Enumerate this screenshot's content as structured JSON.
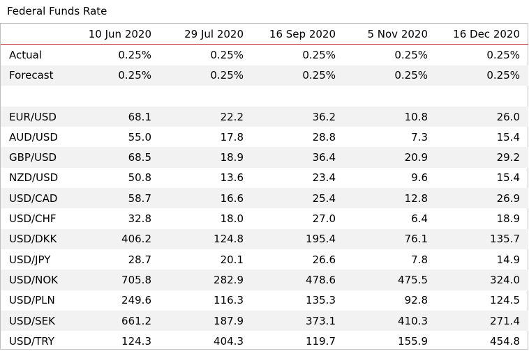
{
  "title": "Federal Funds Rate",
  "columns": [
    "10 Jun 2020",
    "29 Jul 2020",
    "16 Sep 2020",
    "5 Nov 2020",
    "16 Dec 2020"
  ],
  "rate_rows": [
    {
      "label": "Actual",
      "values": [
        "0.25%",
        "0.25%",
        "0.25%",
        "0.25%",
        "0.25%"
      ]
    },
    {
      "label": "Forecast",
      "values": [
        "0.25%",
        "0.25%",
        "0.25%",
        "0.25%",
        "0.25%"
      ]
    }
  ],
  "pair_rows": [
    {
      "label": "EUR/USD",
      "values": [
        "68.1",
        "22.2",
        "36.2",
        "10.8",
        "26.0"
      ]
    },
    {
      "label": "AUD/USD",
      "values": [
        "55.0",
        "17.8",
        "28.8",
        "7.3",
        "15.4"
      ]
    },
    {
      "label": "GBP/USD",
      "values": [
        "68.5",
        "18.9",
        "36.4",
        "20.9",
        "29.2"
      ]
    },
    {
      "label": "NZD/USD",
      "values": [
        "50.8",
        "13.6",
        "23.4",
        "9.6",
        "15.4"
      ]
    },
    {
      "label": "USD/CAD",
      "values": [
        "58.7",
        "16.6",
        "25.4",
        "12.8",
        "26.9"
      ]
    },
    {
      "label": "USD/CHF",
      "values": [
        "32.8",
        "18.0",
        "27.0",
        "6.4",
        "18.9"
      ]
    },
    {
      "label": "USD/DKK",
      "values": [
        "406.2",
        "124.8",
        "195.4",
        "76.1",
        "135.7"
      ]
    },
    {
      "label": "USD/JPY",
      "values": [
        "28.7",
        "20.1",
        "26.6",
        "7.8",
        "14.9"
      ]
    },
    {
      "label": "USD/NOK",
      "values": [
        "705.8",
        "282.9",
        "478.6",
        "475.5",
        "324.0"
      ]
    },
    {
      "label": "USD/PLN",
      "values": [
        "249.6",
        "116.3",
        "135.3",
        "92.8",
        "124.5"
      ]
    },
    {
      "label": "USD/SEK",
      "values": [
        "661.2",
        "187.9",
        "373.1",
        "410.3",
        "271.4"
      ]
    },
    {
      "label": "USD/TRY",
      "values": [
        "124.3",
        "404.3",
        "119.7",
        "155.9",
        "454.8"
      ]
    }
  ],
  "colors": {
    "header_rule": "#c0272d",
    "band": "#f2f2f2",
    "border": "#bfbfbf"
  }
}
